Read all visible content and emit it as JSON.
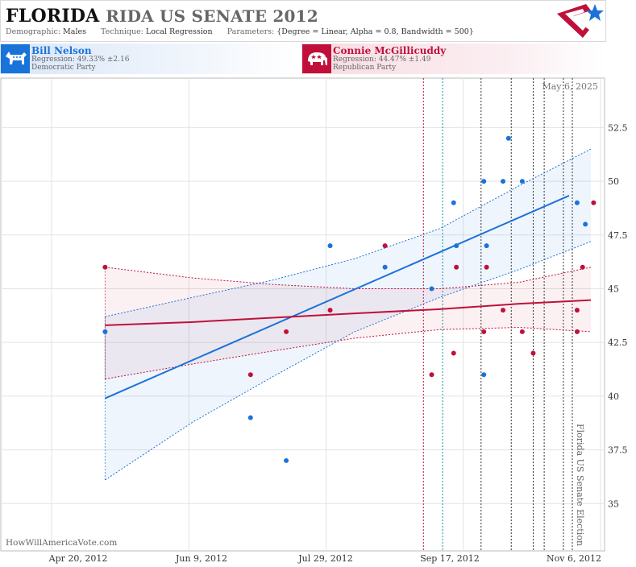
{
  "header": {
    "title_state": "FLORIDA",
    "title_rest": "RIDA US SENATE 2012",
    "demographic_label": "Demographic:",
    "demographic_value": "Males",
    "technique_label": "Technique:",
    "technique_value": "Local Regression",
    "parameters_label": "Parameters:",
    "parameters_value": "{Degree = Linear, Alpha = 0.8, Bandwidth = 500}"
  },
  "candidates": {
    "dem": {
      "name": "Bill Nelson",
      "regression": "Regression: 49.33% ±2.16",
      "party": "Democratic Party",
      "color": "#1a73d9"
    },
    "rep": {
      "name": "Connie McGillicuddy",
      "regression": "Regression: 44.47% ±1.49",
      "party": "Republican Party",
      "color": "#c0103a"
    }
  },
  "footer": {
    "credit": "HowWillAmericaVote.com"
  },
  "chart_data": {
    "type": "scatter",
    "date_label": "May 6, 2025",
    "event_label": "Florida US Senate Election",
    "x_ticks": [
      "2012-04-20",
      "2012-06-09",
      "2012-07-29",
      "2012-09-17",
      "2012-11-06"
    ],
    "x_tick_labels": [
      "Apr 20, 2012",
      "Jun 9, 2012",
      "Jul 29, 2012",
      "Sep 17, 2012",
      "Nov 6, 2012"
    ],
    "xlim": [
      "2012-03-31",
      "2012-11-06"
    ],
    "ylim": [
      32.8,
      54.8
    ],
    "y_ticks": [
      35,
      37.5,
      40,
      42.5,
      45,
      47.5,
      50,
      52.5
    ],
    "y_tick_labels": [
      "35",
      "37.5",
      "40",
      "42.5",
      "45",
      "47.5",
      "50",
      "52.5"
    ],
    "grid": true,
    "event_date": "2012-11-06",
    "vlines": [
      {
        "x": "2012-09-01",
        "color": "#c0103a"
      },
      {
        "x": "2012-09-08",
        "color": "#1a8fa0"
      },
      {
        "x": "2012-09-22",
        "color": "#333333"
      },
      {
        "x": "2012-10-03",
        "color": "#333333"
      },
      {
        "x": "2012-10-11",
        "color": "#333333"
      },
      {
        "x": "2012-10-15",
        "color": "#333333"
      },
      {
        "x": "2012-10-22",
        "color": "#333333"
      }
    ],
    "series": [
      {
        "party": "Democratic",
        "color": "#1a73d9",
        "points": [
          [
            "2012-05-08",
            43
          ],
          [
            "2012-06-30",
            39
          ],
          [
            "2012-07-13",
            37
          ],
          [
            "2012-07-29",
            47
          ],
          [
            "2012-08-18",
            46
          ],
          [
            "2012-09-04",
            45
          ],
          [
            "2012-09-12",
            49
          ],
          [
            "2012-09-13",
            47
          ],
          [
            "2012-09-23",
            50
          ],
          [
            "2012-09-23",
            41
          ],
          [
            "2012-09-24",
            47
          ],
          [
            "2012-09-30",
            50
          ],
          [
            "2012-10-02",
            52
          ],
          [
            "2012-10-07",
            50
          ],
          [
            "2012-10-27",
            49
          ],
          [
            "2012-10-30",
            48
          ]
        ],
        "fit": [
          [
            "2012-05-08",
            39.9
          ],
          [
            "2012-11-06",
            49.33
          ]
        ],
        "band_upper": [
          [
            "2012-05-08",
            43.7
          ],
          [
            "2012-06-09",
            44.6
          ],
          [
            "2012-07-08",
            45.4
          ],
          [
            "2012-08-07",
            46.4
          ],
          [
            "2012-09-07",
            47.8
          ],
          [
            "2012-10-06",
            49.8
          ],
          [
            "2012-11-01",
            51.5
          ]
        ],
        "band_lower": [
          [
            "2012-05-08",
            36.1
          ],
          [
            "2012-06-09",
            38.8
          ],
          [
            "2012-07-08",
            40.9
          ],
          [
            "2012-08-07",
            43.0
          ],
          [
            "2012-09-07",
            44.6
          ],
          [
            "2012-10-06",
            45.9
          ],
          [
            "2012-11-01",
            47.2
          ]
        ]
      },
      {
        "party": "Republican",
        "color": "#c0103a",
        "points": [
          [
            "2012-05-08",
            46
          ],
          [
            "2012-06-30",
            41
          ],
          [
            "2012-07-13",
            43
          ],
          [
            "2012-07-29",
            44
          ],
          [
            "2012-08-18",
            47
          ],
          [
            "2012-09-04",
            41
          ],
          [
            "2012-09-12",
            42
          ],
          [
            "2012-09-13",
            46
          ],
          [
            "2012-09-23",
            43
          ],
          [
            "2012-09-24",
            46
          ],
          [
            "2012-09-30",
            44
          ],
          [
            "2012-10-07",
            43
          ],
          [
            "2012-10-11",
            42
          ],
          [
            "2012-10-27",
            44
          ],
          [
            "2012-10-27",
            43
          ],
          [
            "2012-10-29",
            46
          ],
          [
            "2012-11-02",
            49
          ]
        ],
        "fit": [
          [
            "2012-05-08",
            43.3
          ],
          [
            "2012-06-09",
            43.45
          ],
          [
            "2012-07-08",
            43.65
          ],
          [
            "2012-08-07",
            43.85
          ],
          [
            "2012-09-07",
            44.05
          ],
          [
            "2012-10-06",
            44.3
          ],
          [
            "2012-11-01",
            44.47
          ]
        ],
        "band_upper": [
          [
            "2012-05-08",
            46.0
          ],
          [
            "2012-06-09",
            45.5
          ],
          [
            "2012-07-08",
            45.2
          ],
          [
            "2012-08-07",
            45.0
          ],
          [
            "2012-09-07",
            45.0
          ],
          [
            "2012-10-06",
            45.3
          ],
          [
            "2012-11-01",
            46.0
          ]
        ],
        "band_lower": [
          [
            "2012-05-08",
            40.8
          ],
          [
            "2012-06-09",
            41.5
          ],
          [
            "2012-07-08",
            42.1
          ],
          [
            "2012-08-07",
            42.7
          ],
          [
            "2012-09-07",
            43.1
          ],
          [
            "2012-10-06",
            43.2
          ],
          [
            "2012-11-01",
            43.0
          ]
        ]
      }
    ]
  }
}
